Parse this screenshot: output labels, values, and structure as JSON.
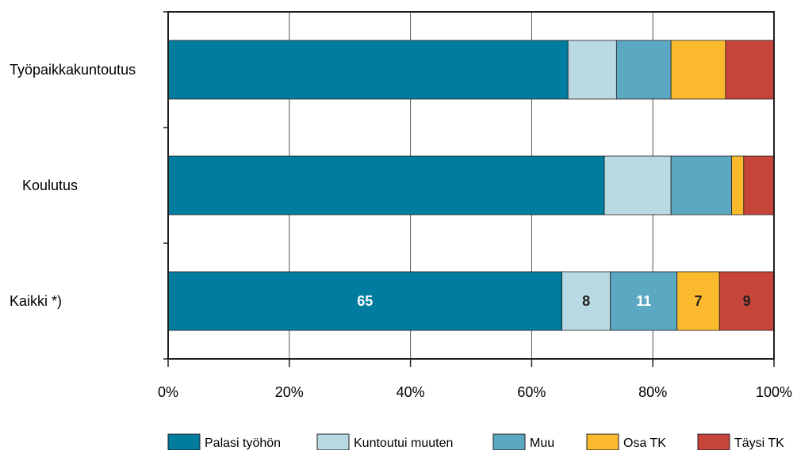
{
  "chart_data": {
    "type": "bar",
    "orientation": "horizontal",
    "stacked": true,
    "percent_axis": true,
    "categories": [
      "Työpaikkakuntoutus",
      "Koulutus",
      "Kaikki *)"
    ],
    "series": [
      {
        "name": "Palasi työhön",
        "color": "#007C9E",
        "values": [
          66,
          72,
          65
        ],
        "labels": [
          "",
          "",
          "65"
        ],
        "label_color": "#ffffff"
      },
      {
        "name": "Kuntoutui muuten",
        "color": "#B9D9E3",
        "values": [
          8,
          11,
          8
        ],
        "labels": [
          "",
          "",
          "8"
        ],
        "label_color": "#231F20"
      },
      {
        "name": "Muu",
        "color": "#5BA8C2",
        "values": [
          9,
          10,
          11
        ],
        "labels": [
          "",
          "",
          "11"
        ],
        "label_color": "#ffffff"
      },
      {
        "name": "Osa TK",
        "color": "#FBBA2D",
        "values": [
          9,
          2,
          7
        ],
        "labels": [
          "",
          "",
          "7"
        ],
        "label_color": "#231F20"
      },
      {
        "name": "Täysi TK",
        "color": "#C6443A",
        "values": [
          8,
          5,
          9
        ],
        "labels": [
          "",
          "",
          "9"
        ],
        "label_color": "#231F20"
      }
    ],
    "xlim": [
      0,
      100
    ],
    "x_ticks": [
      "0%",
      "20%",
      "40%",
      "60%",
      "80%",
      "100%"
    ],
    "grid": true,
    "legend_position": "bottom"
  }
}
